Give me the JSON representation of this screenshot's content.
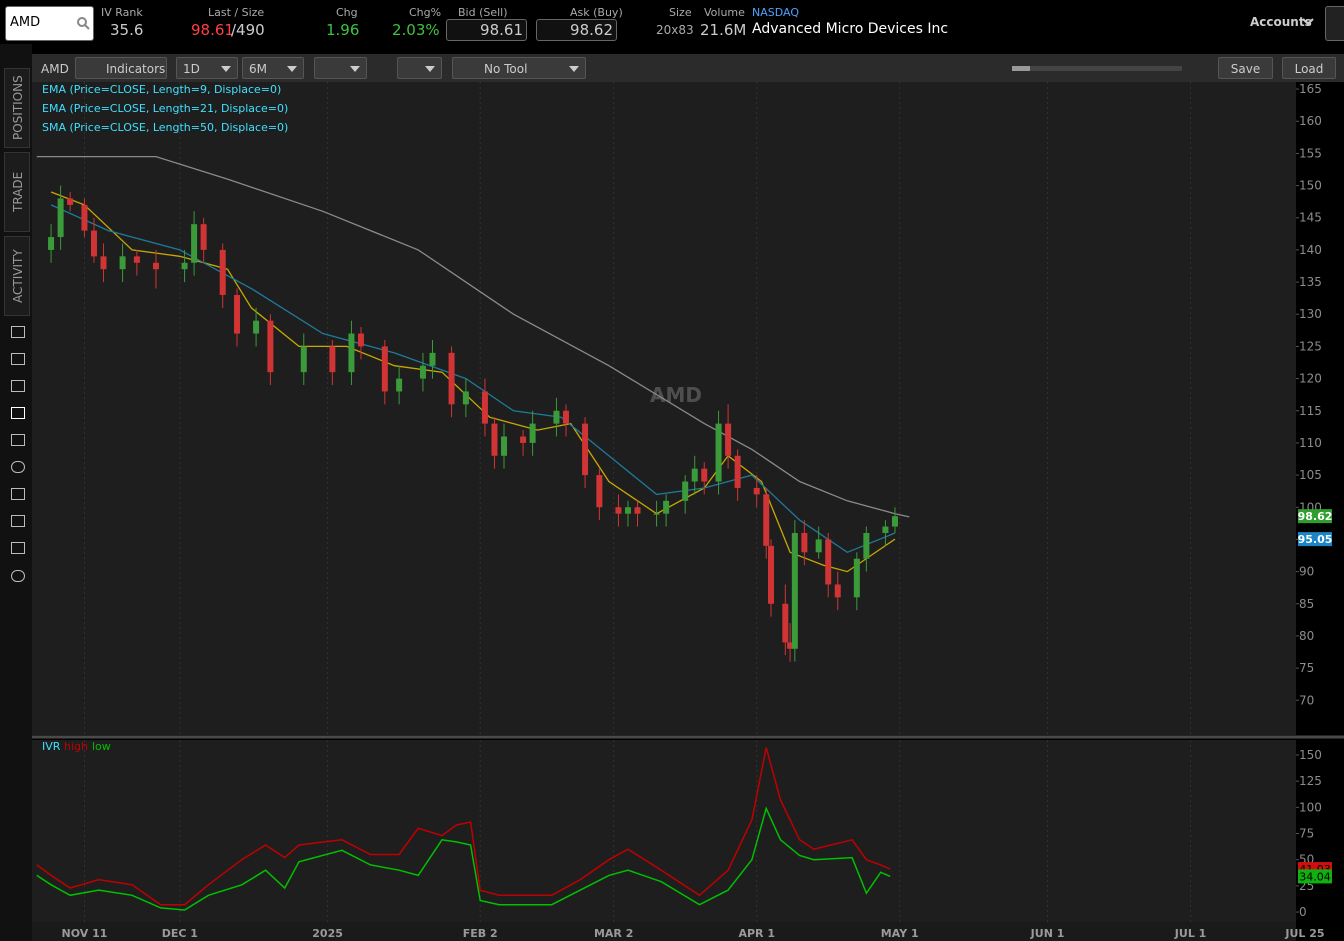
{
  "header": {
    "symbol": "AMD",
    "iv_rank_label": "IV Rank",
    "iv_rank": "35.6",
    "last_size_label": "Last / Size",
    "last": "98.61",
    "size": "/490",
    "chg_label": "Chg",
    "chg": "1.96",
    "chg_pct_label": "Chg%",
    "chg_pct": "2.03%",
    "bid_label": "Bid (Sell)",
    "bid": "98.61",
    "ask_label": "Ask (Buy)",
    "ask": "98.62",
    "size_label": "Size",
    "bid_ask_size": "20x83",
    "volume_label": "Volume",
    "volume": "21.6M",
    "exchange": "NASDAQ",
    "company": "Advanced Micro Devices Inc",
    "accounts": "Accounts"
  },
  "toolbar": {
    "symbol": "AMD",
    "indicators": "Indicators",
    "aggregation": "1D",
    "range": "6M",
    "tool": "No Tool",
    "save": "Save",
    "load": "Load"
  },
  "sidebar": {
    "tabs": [
      "POSITIONS",
      "TRADE",
      "ACTIVITY"
    ]
  },
  "chart_data": [
    {
      "type": "candlestick",
      "watermark": "AMD",
      "xlim": [
        -1,
        266
      ],
      "ylim": [
        64.6,
        166.1
      ],
      "yticks": [
        70,
        75,
        80,
        85,
        90,
        95,
        100,
        105,
        110,
        115,
        120,
        125,
        130,
        135,
        140,
        145,
        150,
        155,
        160,
        165
      ],
      "grid": true,
      "up_color": "#3b9b3b",
      "down_color": "#d03434",
      "legend_color": "#3ee0ff",
      "candles": {
        "x": [
          3,
          5,
          7,
          10,
          12,
          14,
          18,
          21,
          25,
          31,
          33,
          35,
          39,
          42,
          46,
          49,
          56,
          62,
          66,
          68,
          73,
          76,
          81,
          83,
          87,
          90,
          94,
          96,
          98,
          102,
          104,
          109,
          111,
          115,
          118,
          122,
          124,
          126,
          130,
          132,
          136,
          138,
          140,
          143,
          145,
          147,
          151,
          153,
          154,
          157,
          158,
          159,
          161,
          164,
          166,
          168,
          172,
          174,
          178,
          180
        ],
        "open": [
          140,
          142,
          148,
          147,
          143,
          139,
          137,
          139,
          138,
          137,
          138,
          144,
          140,
          133,
          127,
          129,
          121,
          125,
          121,
          127,
          125,
          118,
          120,
          122,
          124,
          116,
          118,
          113,
          108,
          111,
          110,
          113,
          115,
          113,
          105,
          100,
          99,
          100,
          99,
          99,
          101,
          104,
          106,
          104,
          113,
          108,
          103,
          102,
          94,
          85,
          79,
          78,
          96,
          93,
          95,
          88,
          86,
          92,
          96,
          97
        ],
        "high": [
          144,
          150,
          149,
          148,
          145,
          141,
          141,
          140,
          140,
          140,
          146,
          145,
          141,
          134,
          131,
          130,
          127,
          126,
          129,
          128,
          126,
          122,
          124,
          126,
          125,
          120,
          120,
          114,
          113,
          112,
          115,
          117,
          116,
          114,
          106,
          102,
          101,
          101,
          101,
          102,
          105,
          108,
          107,
          115,
          116,
          109,
          105,
          103,
          95,
          88,
          82,
          98,
          98,
          97,
          96,
          90,
          93,
          97,
          98,
          100
        ],
        "low": [
          138,
          140,
          146,
          142,
          138,
          135,
          135,
          136,
          134,
          135,
          136,
          138,
          131,
          125,
          125,
          119,
          119,
          119,
          119,
          123,
          116,
          116,
          118,
          120,
          114,
          114,
          111,
          106,
          106,
          108,
          108,
          111,
          111,
          103,
          98,
          97,
          97,
          97,
          97,
          97,
          99,
          102,
          102,
          102,
          106,
          101,
          100,
          92,
          83,
          77,
          76,
          76,
          91,
          92,
          86,
          84,
          84,
          90,
          94,
          96
        ],
        "close": [
          142,
          148,
          147,
          143,
          139,
          137,
          139,
          138,
          137,
          138,
          144,
          140,
          133,
          127,
          129,
          121,
          125,
          121,
          127,
          125,
          118,
          120,
          122,
          124,
          116,
          118,
          113,
          108,
          111,
          110,
          113,
          115,
          113,
          105,
          100,
          99,
          100,
          99,
          99,
          101,
          104,
          106,
          104,
          113,
          108,
          103,
          102,
          94,
          85,
          79,
          78,
          96,
          93,
          95,
          88,
          86,
          92,
          96,
          97,
          98.61
        ]
      },
      "series": [
        {
          "name": "EMA (Price=CLOSE, Length=9, Displace=0)",
          "color": "#c9a800",
          "x": [
            3,
            10,
            20,
            30,
            40,
            45,
            55,
            65,
            75,
            85,
            95,
            105,
            112,
            120,
            130,
            140,
            145,
            152,
            158,
            165,
            170,
            180
          ],
          "values": [
            149,
            147,
            140,
            139,
            137,
            131,
            125,
            125,
            122,
            121,
            114,
            112,
            113,
            104,
            99,
            103,
            108,
            104,
            93,
            91,
            90,
            95.05
          ]
        },
        {
          "name": "EMA (Price=CLOSE, Length=21, Displace=0)",
          "color": "#1e7a9a",
          "x": [
            3,
            15,
            30,
            45,
            60,
            75,
            90,
            100,
            110,
            120,
            130,
            140,
            150,
            160,
            170,
            180
          ],
          "values": [
            147,
            143,
            140,
            134,
            127,
            124,
            120,
            115,
            114,
            108,
            102,
            103,
            105,
            98,
            93,
            96
          ]
        },
        {
          "name": "SMA (Price=CLOSE, Length=50, Displace=0)",
          "color": "#8a8a8a",
          "x": [
            0,
            25,
            40,
            60,
            80,
            100,
            120,
            140,
            150,
            160,
            170,
            180,
            183
          ],
          "values": [
            154.5,
            154.5,
            151,
            146,
            140,
            130,
            122,
            113,
            109,
            104,
            101,
            99,
            98.5
          ]
        }
      ],
      "price_markers": [
        {
          "value": 98.62,
          "color": "#2e9e2e"
        },
        {
          "value": 95.05,
          "color": "#1a86c8"
        }
      ]
    },
    {
      "type": "line",
      "xlim": [
        -1,
        266
      ],
      "ylim": [
        -9.5,
        164.3
      ],
      "yticks": [
        0,
        25,
        50,
        75,
        100,
        125,
        150
      ],
      "xticks": [
        {
          "value": 10,
          "label": "NOV 11"
        },
        {
          "value": 30,
          "label": "DEC 1"
        },
        {
          "value": 61,
          "label": "2025"
        },
        {
          "value": 93,
          "label": "FEB 2"
        },
        {
          "value": 121,
          "label": "MAR 2"
        },
        {
          "value": 151,
          "label": "APR 1"
        },
        {
          "value": 181,
          "label": "MAY 1"
        },
        {
          "value": 212,
          "label": "JUN 1"
        },
        {
          "value": 242,
          "label": "JUL 1"
        },
        {
          "value": 266,
          "label": "JUL 25"
        }
      ],
      "legend_title": "IVR",
      "legend_title_color": "#3ee0ff",
      "series": [
        {
          "name": "high",
          "color": "#c00000",
          "x": [
            0,
            3,
            7,
            13,
            20,
            26,
            31,
            36,
            43,
            48,
            52,
            55,
            64,
            70,
            76,
            80,
            85,
            88,
            91,
            93,
            97,
            108,
            114,
            120,
            124,
            131,
            139,
            145,
            150,
            153,
            156,
            160,
            163,
            171,
            174,
            177,
            179
          ],
          "values": [
            45,
            35,
            23,
            31,
            26,
            7,
            7,
            26,
            50,
            64,
            52,
            64,
            69,
            55,
            55,
            80,
            73,
            83,
            86,
            21,
            16,
            16,
            31,
            50,
            60,
            40,
            16,
            40,
            88,
            157,
            107,
            69,
            60,
            69,
            50,
            45,
            41.03
          ]
        },
        {
          "name": "low",
          "color": "#00c000",
          "x": [
            0,
            3,
            7,
            13,
            20,
            26,
            31,
            36,
            43,
            48,
            52,
            55,
            64,
            70,
            76,
            80,
            85,
            88,
            91,
            93,
            97,
            108,
            114,
            120,
            124,
            131,
            139,
            145,
            150,
            153,
            156,
            160,
            163,
            171,
            174,
            177,
            179
          ],
          "values": [
            35,
            26,
            16,
            21,
            16,
            4,
            2,
            16,
            26,
            40,
            23,
            48,
            59,
            45,
            40,
            35,
            69,
            67,
            64,
            11,
            7,
            7,
            21,
            35,
            40,
            29,
            7,
            21,
            50,
            99,
            69,
            54,
            50,
            52,
            18,
            38,
            34.04
          ]
        }
      ],
      "value_markers": [
        {
          "value": 41.03,
          "color": "#d01010"
        },
        {
          "value": 34.04,
          "color": "#10b010"
        }
      ]
    }
  ]
}
